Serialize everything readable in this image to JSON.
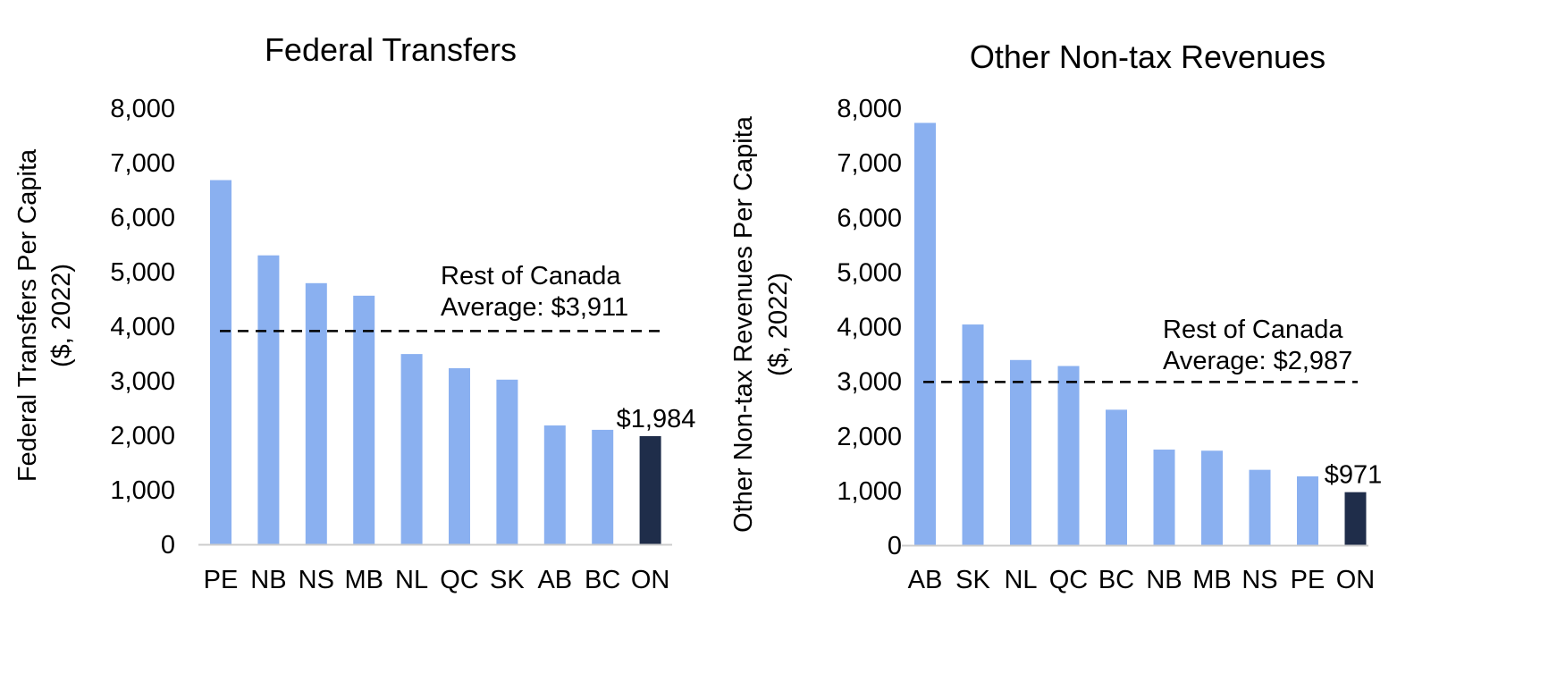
{
  "chart_data": [
    {
      "type": "bar",
      "title": "Federal Transfers",
      "ylabel_line1": "Federal Transfers Per Capita",
      "ylabel_line2": "($, 2022)",
      "categories": [
        "PE",
        "NB",
        "NS",
        "MB",
        "NL",
        "QC",
        "SK",
        "AB",
        "BC",
        "ON"
      ],
      "values": [
        6680,
        5300,
        4790,
        4560,
        3490,
        3230,
        3020,
        2180,
        2100,
        1984
      ],
      "highlight_index": 9,
      "highlight_label": "$1,984",
      "ylim": [
        0,
        8000
      ],
      "yticks": [
        0,
        1000,
        2000,
        3000,
        4000,
        5000,
        6000,
        7000,
        8000
      ],
      "ytick_labels": [
        "0",
        "1,000",
        "2,000",
        "3,000",
        "4,000",
        "5,000",
        "6,000",
        "7,000",
        "8,000"
      ],
      "reference_line": {
        "value": 3911,
        "label_line1": "Rest of Canada",
        "label_line2": "Average: $3,911"
      },
      "grid": false,
      "colors": {
        "bar": "#8AB0F0",
        "highlight": "#1F2D4A",
        "axis": "#CCCCCC",
        "reference": "#000000"
      }
    },
    {
      "type": "bar",
      "title": "Other Non-tax Revenues",
      "ylabel_line1": "Other Non-tax Revenues Per Capita",
      "ylabel_line2": "($, 2022)",
      "categories": [
        "AB",
        "SK",
        "NL",
        "QC",
        "BC",
        "NB",
        "MB",
        "NS",
        "PE",
        "ON"
      ],
      "values": [
        7730,
        4040,
        3390,
        3280,
        2480,
        1750,
        1730,
        1380,
        1260,
        971
      ],
      "highlight_index": 9,
      "highlight_label": "$971",
      "ylim": [
        0,
        8000
      ],
      "yticks": [
        0,
        1000,
        2000,
        3000,
        4000,
        5000,
        6000,
        7000,
        8000
      ],
      "ytick_labels": [
        "0",
        "1,000",
        "2,000",
        "3,000",
        "4,000",
        "5,000",
        "6,000",
        "7,000",
        "8,000"
      ],
      "reference_line": {
        "value": 2987,
        "label_line1": "Rest of Canada",
        "label_line2": "Average: $2,987"
      },
      "grid": false,
      "colors": {
        "bar": "#8AB0F0",
        "highlight": "#1F2D4A",
        "axis": "#CCCCCC",
        "reference": "#000000"
      }
    }
  ]
}
